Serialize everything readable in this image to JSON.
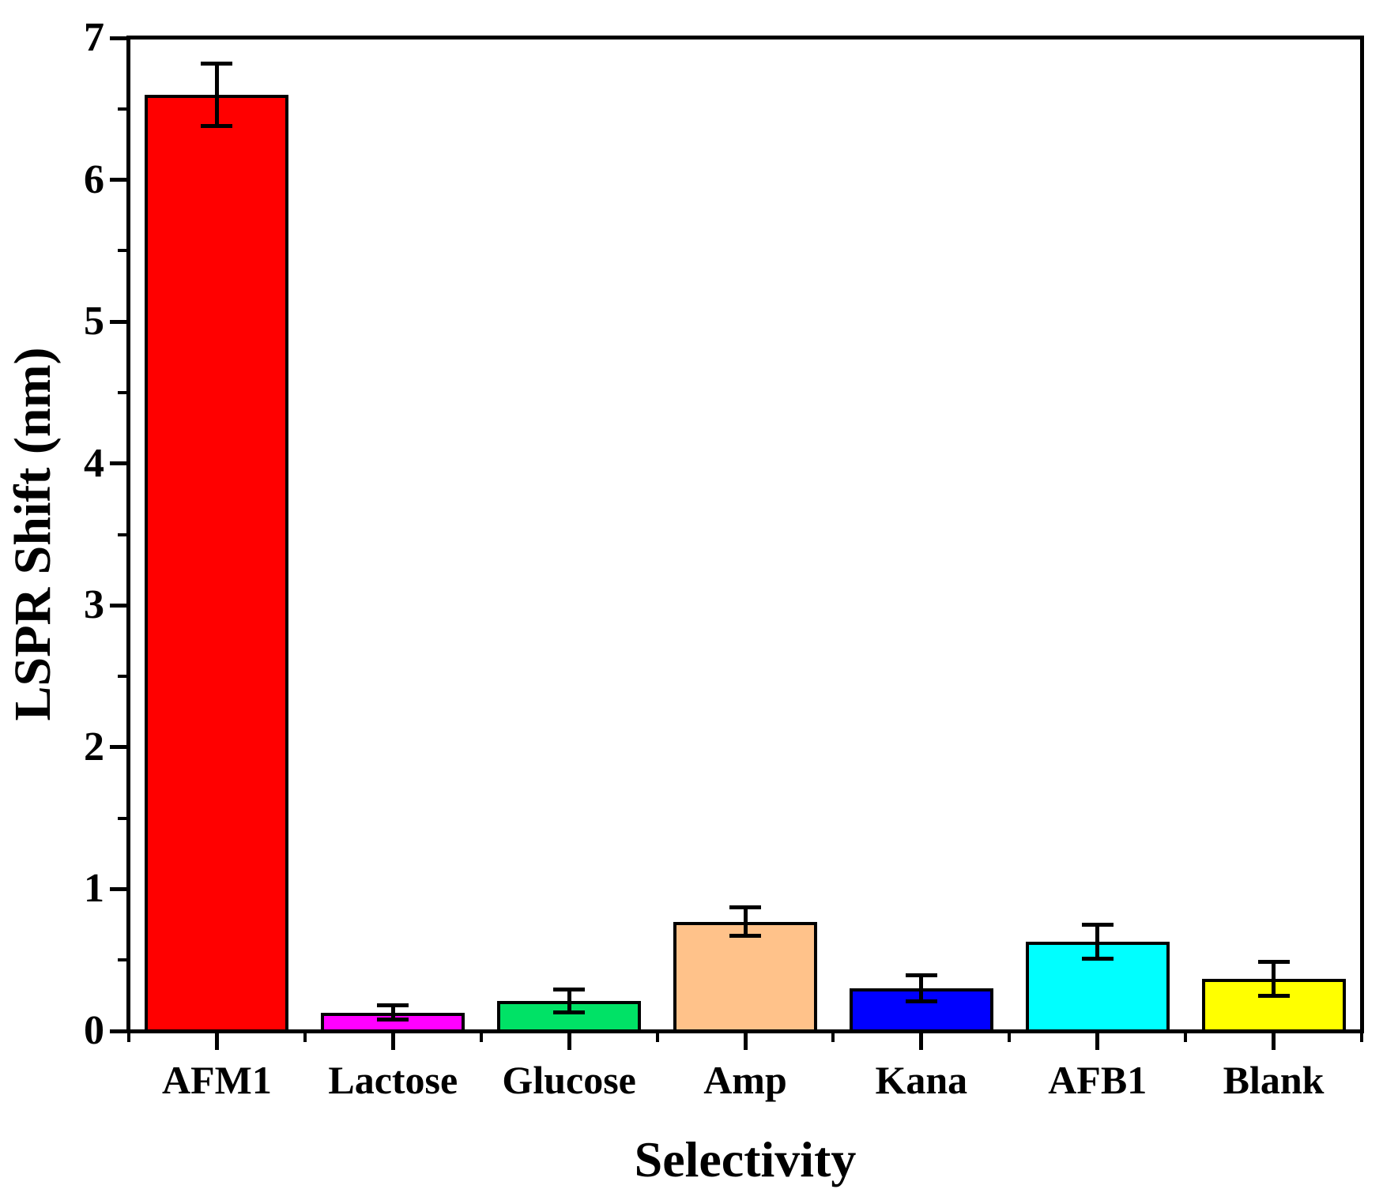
{
  "figure": {
    "background": "#FFFFFF",
    "text_color": "#000000",
    "axis_color": "#000000"
  },
  "chart_data": {
    "type": "bar",
    "title": "",
    "xlabel": "Selectivity",
    "ylabel": "LSPR Shift (nm)",
    "categories": [
      "AFM1",
      "Lactose",
      "Glucose",
      "Amp",
      "Kana",
      "AFB1",
      "Blank"
    ],
    "series": [
      {
        "name": "LSPR Shift",
        "values": [
          6.6,
          0.13,
          0.21,
          0.77,
          0.3,
          0.63,
          0.37
        ],
        "errors": [
          0.22,
          0.05,
          0.08,
          0.1,
          0.09,
          0.12,
          0.12
        ]
      }
    ],
    "bar_colors": [
      "#FF0000",
      "#FF00FF",
      "#00E266",
      "#FFC28A",
      "#0000FF",
      "#00FFFF",
      "#FFFF00"
    ],
    "bar_outline_color": "#000000",
    "error_bar_color": "#000000",
    "ylim": [
      0,
      7
    ],
    "ytick_labels": [
      "0",
      "1",
      "2",
      "3",
      "4",
      "5",
      "6",
      "7"
    ],
    "ytick_interval": 1,
    "ytick_minor_interval": 0.5,
    "grid": false,
    "legend": null
  }
}
